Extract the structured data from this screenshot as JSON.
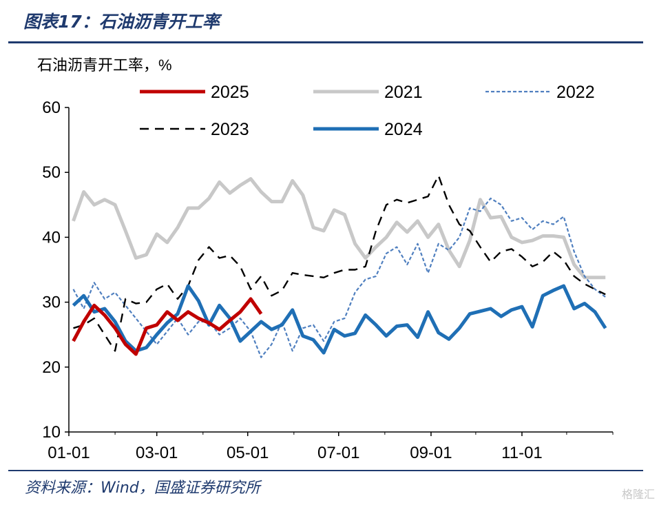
{
  "header": {
    "title": "图表17：石油沥青开工率"
  },
  "footer": {
    "source": "资料来源：Wind，国盛证券研究所",
    "watermark": "格隆汇"
  },
  "chart_data": {
    "type": "line",
    "ylabel": "石油沥青开工率，%",
    "ylim": [
      10,
      60
    ],
    "yticks": [
      10,
      20,
      30,
      40,
      50,
      60
    ],
    "xlim_day": [
      0,
      365
    ],
    "x_ticks": [
      {
        "label": "01-01",
        "day": 0
      },
      {
        "label": "03-01",
        "day": 59
      },
      {
        "label": "05-01",
        "day": 120
      },
      {
        "label": "07-01",
        "day": 181
      },
      {
        "label": "09-01",
        "day": 243
      },
      {
        "label": "11-01",
        "day": 304
      }
    ],
    "grid": false,
    "legend_position": "top",
    "series": [
      {
        "name": "2025",
        "color": "#c00000",
        "style": "solid-thick",
        "x_day": [
          3,
          10,
          17,
          24,
          31,
          38,
          45,
          52,
          59,
          66,
          73,
          80,
          87,
          94,
          101,
          108,
          115,
          122,
          129
        ],
        "y": [
          24,
          27,
          29.5,
          28,
          26,
          23.5,
          22,
          26,
          26.5,
          28.5,
          27.2,
          28.5,
          27.5,
          26.8,
          25.8,
          27.2,
          28.5,
          30.5,
          28.2
        ]
      },
      {
        "name": "2021",
        "color": "#c8c8c8",
        "style": "solid-thick",
        "x_day": [
          3,
          10,
          17,
          24,
          31,
          38,
          45,
          52,
          59,
          66,
          73,
          80,
          87,
          94,
          101,
          108,
          115,
          122,
          129,
          136,
          143,
          150,
          157,
          164,
          171,
          178,
          185,
          192,
          199,
          206,
          213,
          220,
          227,
          234,
          241,
          248,
          255,
          262,
          269,
          276,
          283,
          290,
          297,
          304,
          311,
          318,
          325,
          332,
          339,
          346,
          353,
          360
        ],
        "y": [
          42.5,
          47,
          45,
          45.8,
          45,
          41,
          36.8,
          37.3,
          40.5,
          39.2,
          41.5,
          44.5,
          44.5,
          46,
          48.5,
          46.8,
          48,
          49,
          47,
          45.5,
          45.5,
          48.7,
          46.5,
          41.5,
          41,
          44.2,
          43.5,
          39,
          36.8,
          38.5,
          40,
          42.3,
          40.8,
          42.5,
          40,
          42,
          38,
          35.5,
          39.5,
          45.8,
          43,
          43.2,
          40,
          39.2,
          39.5,
          40.2,
          40.2,
          40,
          35.8,
          33.8,
          33.8,
          33.8
        ]
      },
      {
        "name": "2022",
        "color": "#4f7fbf",
        "style": "dotted",
        "x_day": [
          3,
          10,
          17,
          24,
          31,
          38,
          45,
          52,
          59,
          66,
          73,
          80,
          87,
          94,
          101,
          108,
          115,
          122,
          129,
          136,
          143,
          150,
          157,
          164,
          171,
          178,
          185,
          192,
          199,
          206,
          213,
          220,
          227,
          234,
          241,
          248,
          255,
          262,
          269,
          276,
          283,
          290,
          297,
          304,
          311,
          318,
          325,
          332,
          339,
          346,
          353,
          360
        ],
        "y": [
          32,
          29,
          33,
          30.5,
          31.5,
          29.5,
          27.5,
          25.5,
          23.5,
          25.5,
          27.5,
          25,
          27,
          27,
          25,
          26,
          27.5,
          25.5,
          21.5,
          23.5,
          27,
          22.5,
          26,
          26.5,
          24,
          27,
          27.5,
          31.5,
          33.5,
          34,
          37.5,
          38.5,
          35.8,
          39,
          34.5,
          39,
          38,
          40,
          44.5,
          44,
          46,
          45,
          42.5,
          43,
          41.2,
          42.5,
          42,
          43.2,
          37.8,
          34,
          32,
          30.8
        ]
      },
      {
        "name": "2023",
        "color": "#000000",
        "style": "dashed",
        "x_day": [
          3,
          10,
          17,
          24,
          31,
          38,
          45,
          52,
          59,
          66,
          73,
          80,
          87,
          94,
          101,
          108,
          115,
          122,
          129,
          136,
          143,
          150,
          157,
          164,
          171,
          178,
          185,
          192,
          199,
          206,
          213,
          220,
          227,
          234,
          241,
          248,
          255,
          262,
          269,
          276,
          283,
          290,
          297,
          304,
          311,
          318,
          325,
          332,
          339,
          346,
          353,
          360
        ],
        "y": [
          26,
          26.5,
          27.5,
          25,
          22.5,
          30.5,
          29.8,
          30,
          32,
          32.8,
          30.5,
          32.5,
          36.5,
          38.5,
          36.8,
          37.2,
          35.5,
          32,
          34,
          31,
          31.8,
          34.5,
          34.2,
          34,
          33.8,
          34.5,
          35,
          35,
          35.5,
          41,
          45,
          45.8,
          45.3,
          45.8,
          46.3,
          49.5,
          45,
          42,
          41,
          38.5,
          36.2,
          37.8,
          38.2,
          37,
          35.5,
          36.2,
          37.8,
          36.5,
          34,
          32.8,
          32,
          31.2
        ]
      },
      {
        "name": "2024",
        "color": "#1f6fb5",
        "style": "solid-thick",
        "x_day": [
          3,
          10,
          17,
          24,
          31,
          38,
          45,
          52,
          59,
          66,
          73,
          80,
          87,
          94,
          101,
          108,
          115,
          122,
          129,
          136,
          143,
          150,
          157,
          164,
          171,
          178,
          185,
          192,
          199,
          206,
          213,
          220,
          227,
          234,
          241,
          248,
          255,
          262,
          269,
          276,
          283,
          290,
          297,
          304,
          311,
          318,
          325,
          332,
          339,
          346,
          353,
          360
        ],
        "y": [
          29.5,
          31,
          28.5,
          29,
          27,
          24,
          22.5,
          23,
          25,
          26.8,
          28.2,
          32.5,
          30.2,
          26.5,
          29.5,
          27.5,
          24,
          25.5,
          27,
          25.8,
          26.5,
          28.8,
          24.8,
          24.2,
          22.2,
          25.8,
          24.8,
          25.2,
          28,
          26.5,
          24.8,
          26.3,
          26.5,
          24.6,
          28.5,
          25.3,
          24.3,
          26,
          28.2,
          28.6,
          29,
          27.8,
          28.8,
          29.3,
          26.2,
          31,
          31.8,
          32.5,
          29,
          29.8,
          28.5,
          26
        ]
      }
    ]
  }
}
